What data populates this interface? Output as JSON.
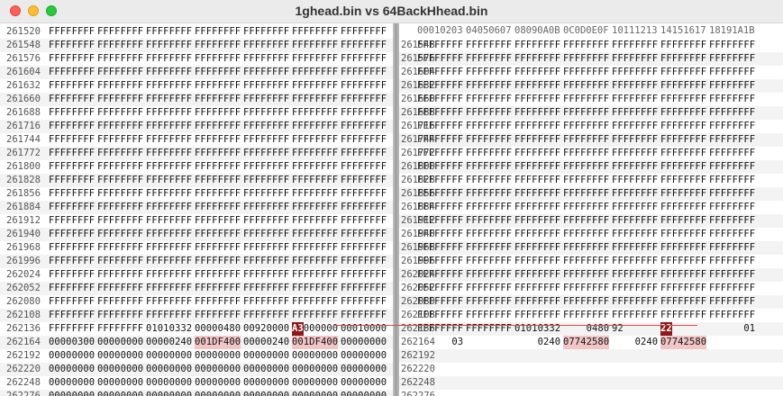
{
  "window": {
    "title": "1ghead.bin vs 64BackHhead.bin"
  },
  "right_header": {
    "columns": [
      "00010203",
      "04050607",
      "08090A0B",
      "0C0D0E0F",
      "10111213",
      "14151617",
      "18191A1B"
    ]
  },
  "left_rows": [
    {
      "offset": "261520",
      "words": [
        "FFFFFFFF",
        "FFFFFFFF",
        "FFFFFFFF",
        "FFFFFFFF",
        "FFFFFFFF",
        "FFFFFFFF",
        "FFFFFFFF"
      ]
    },
    {
      "offset": "261548",
      "words": [
        "FFFFFFFF",
        "FFFFFFFF",
        "FFFFFFFF",
        "FFFFFFFF",
        "FFFFFFFF",
        "FFFFFFFF",
        "FFFFFFFF"
      ]
    },
    {
      "offset": "261576",
      "words": [
        "FFFFFFFF",
        "FFFFFFFF",
        "FFFFFFFF",
        "FFFFFFFF",
        "FFFFFFFF",
        "FFFFFFFF",
        "FFFFFFFF"
      ]
    },
    {
      "offset": "261604",
      "words": [
        "FFFFFFFF",
        "FFFFFFFF",
        "FFFFFFFF",
        "FFFFFFFF",
        "FFFFFFFF",
        "FFFFFFFF",
        "FFFFFFFF"
      ]
    },
    {
      "offset": "261632",
      "words": [
        "FFFFFFFF",
        "FFFFFFFF",
        "FFFFFFFF",
        "FFFFFFFF",
        "FFFFFFFF",
        "FFFFFFFF",
        "FFFFFFFF"
      ]
    },
    {
      "offset": "261660",
      "words": [
        "FFFFFFFF",
        "FFFFFFFF",
        "FFFFFFFF",
        "FFFFFFFF",
        "FFFFFFFF",
        "FFFFFFFF",
        "FFFFFFFF"
      ]
    },
    {
      "offset": "261688",
      "words": [
        "FFFFFFFF",
        "FFFFFFFF",
        "FFFFFFFF",
        "FFFFFFFF",
        "FFFFFFFF",
        "FFFFFFFF",
        "FFFFFFFF"
      ]
    },
    {
      "offset": "261716",
      "words": [
        "FFFFFFFF",
        "FFFFFFFF",
        "FFFFFFFF",
        "FFFFFFFF",
        "FFFFFFFF",
        "FFFFFFFF",
        "FFFFFFFF"
      ]
    },
    {
      "offset": "261744",
      "words": [
        "FFFFFFFF",
        "FFFFFFFF",
        "FFFFFFFF",
        "FFFFFFFF",
        "FFFFFFFF",
        "FFFFFFFF",
        "FFFFFFFF"
      ]
    },
    {
      "offset": "261772",
      "words": [
        "FFFFFFFF",
        "FFFFFFFF",
        "FFFFFFFF",
        "FFFFFFFF",
        "FFFFFFFF",
        "FFFFFFFF",
        "FFFFFFFF"
      ]
    },
    {
      "offset": "261800",
      "words": [
        "FFFFFFFF",
        "FFFFFFFF",
        "FFFFFFFF",
        "FFFFFFFF",
        "FFFFFFFF",
        "FFFFFFFF",
        "FFFFFFFF"
      ]
    },
    {
      "offset": "261828",
      "words": [
        "FFFFFFFF",
        "FFFFFFFF",
        "FFFFFFFF",
        "FFFFFFFF",
        "FFFFFFFF",
        "FFFFFFFF",
        "FFFFFFFF"
      ]
    },
    {
      "offset": "261856",
      "words": [
        "FFFFFFFF",
        "FFFFFFFF",
        "FFFFFFFF",
        "FFFFFFFF",
        "FFFFFFFF",
        "FFFFFFFF",
        "FFFFFFFF"
      ]
    },
    {
      "offset": "261884",
      "words": [
        "FFFFFFFF",
        "FFFFFFFF",
        "FFFFFFFF",
        "FFFFFFFF",
        "FFFFFFFF",
        "FFFFFFFF",
        "FFFFFFFF"
      ]
    },
    {
      "offset": "261912",
      "words": [
        "FFFFFFFF",
        "FFFFFFFF",
        "FFFFFFFF",
        "FFFFFFFF",
        "FFFFFFFF",
        "FFFFFFFF",
        "FFFFFFFF"
      ]
    },
    {
      "offset": "261940",
      "words": [
        "FFFFFFFF",
        "FFFFFFFF",
        "FFFFFFFF",
        "FFFFFFFF",
        "FFFFFFFF",
        "FFFFFFFF",
        "FFFFFFFF"
      ]
    },
    {
      "offset": "261968",
      "words": [
        "FFFFFFFF",
        "FFFFFFFF",
        "FFFFFFFF",
        "FFFFFFFF",
        "FFFFFFFF",
        "FFFFFFFF",
        "FFFFFFFF"
      ]
    },
    {
      "offset": "261996",
      "words": [
        "FFFFFFFF",
        "FFFFFFFF",
        "FFFFFFFF",
        "FFFFFFFF",
        "FFFFFFFF",
        "FFFFFFFF",
        "FFFFFFFF"
      ]
    },
    {
      "offset": "262024",
      "words": [
        "FFFFFFFF",
        "FFFFFFFF",
        "FFFFFFFF",
        "FFFFFFFF",
        "FFFFFFFF",
        "FFFFFFFF",
        "FFFFFFFF"
      ]
    },
    {
      "offset": "262052",
      "words": [
        "FFFFFFFF",
        "FFFFFFFF",
        "FFFFFFFF",
        "FFFFFFFF",
        "FFFFFFFF",
        "FFFFFFFF",
        "FFFFFFFF"
      ]
    },
    {
      "offset": "262080",
      "words": [
        "FFFFFFFF",
        "FFFFFFFF",
        "FFFFFFFF",
        "FFFFFFFF",
        "FFFFFFFF",
        "FFFFFFFF",
        "FFFFFFFF"
      ]
    },
    {
      "offset": "262108",
      "words": [
        "FFFFFFFF",
        "FFFFFFFF",
        "FFFFFFFF",
        "FFFFFFFF",
        "FFFFFFFF",
        "FFFFFFFF",
        "FFFFFFFF"
      ]
    },
    {
      "offset": "262136",
      "words": [
        "FFFFFFFF",
        "FFFFFFFF",
        "01010332",
        "00000480",
        "00920000",
        "A3000000",
        "00010000"
      ],
      "marks": {
        "5": {
          "sel": [
            0,
            1
          ]
        }
      }
    },
    {
      "offset": "262164",
      "words": [
        "00000300",
        "00000000",
        "00000240",
        "001DF400",
        "00000240",
        "001DF400",
        "00000000"
      ],
      "marks": {
        "3": {
          "diff": [
            0,
            7
          ]
        },
        "5": {
          "diff": [
            0,
            7
          ]
        }
      }
    },
    {
      "offset": "262192",
      "words": [
        "00000000",
        "00000000",
        "00000000",
        "00000000",
        "00000000",
        "00000000",
        "00000000"
      ]
    },
    {
      "offset": "262220",
      "words": [
        "00000000",
        "00000000",
        "00000000",
        "00000000",
        "00000000",
        "00000000",
        "00000000"
      ]
    },
    {
      "offset": "262248",
      "words": [
        "00000000",
        "00000000",
        "00000000",
        "00000000",
        "00000000",
        "00000000",
        "00000000"
      ]
    },
    {
      "offset": "262276",
      "words": [
        "00000000",
        "00000000",
        "00000000",
        "00000000",
        "00000000",
        "00000000",
        "00000000"
      ]
    }
  ],
  "right_rows": [
    {
      "offset": "261548",
      "words": [
        "FFFFFFFF",
        "FFFFFFFF",
        "FFFFFFFF",
        "FFFFFFFF",
        "FFFFFFFF",
        "FFFFFFFF",
        "FFFFFFFF"
      ]
    },
    {
      "offset": "261576",
      "words": [
        "FFFFFFFF",
        "FFFFFFFF",
        "FFFFFFFF",
        "FFFFFFFF",
        "FFFFFFFF",
        "FFFFFFFF",
        "FFFFFFFF"
      ]
    },
    {
      "offset": "261604",
      "words": [
        "FFFFFFFF",
        "FFFFFFFF",
        "FFFFFFFF",
        "FFFFFFFF",
        "FFFFFFFF",
        "FFFFFFFF",
        "FFFFFFFF"
      ]
    },
    {
      "offset": "261632",
      "words": [
        "FFFFFFFF",
        "FFFFFFFF",
        "FFFFFFFF",
        "FFFFFFFF",
        "FFFFFFFF",
        "FFFFFFFF",
        "FFFFFFFF"
      ]
    },
    {
      "offset": "261660",
      "words": [
        "FFFFFFFF",
        "FFFFFFFF",
        "FFFFFFFF",
        "FFFFFFFF",
        "FFFFFFFF",
        "FFFFFFFF",
        "FFFFFFFF"
      ]
    },
    {
      "offset": "261688",
      "words": [
        "FFFFFFFF",
        "FFFFFFFF",
        "FFFFFFFF",
        "FFFFFFFF",
        "FFFFFFFF",
        "FFFFFFFF",
        "FFFFFFFF"
      ]
    },
    {
      "offset": "261716",
      "words": [
        "FFFFFFFF",
        "FFFFFFFF",
        "FFFFFFFF",
        "FFFFFFFF",
        "FFFFFFFF",
        "FFFFFFFF",
        "FFFFFFFF"
      ]
    },
    {
      "offset": "261744",
      "words": [
        "FFFFFFFF",
        "FFFFFFFF",
        "FFFFFFFF",
        "FFFFFFFF",
        "FFFFFFFF",
        "FFFFFFFF",
        "FFFFFFFF"
      ]
    },
    {
      "offset": "261772",
      "words": [
        "FFFFFFFF",
        "FFFFFFFF",
        "FFFFFFFF",
        "FFFFFFFF",
        "FFFFFFFF",
        "FFFFFFFF",
        "FFFFFFFF"
      ]
    },
    {
      "offset": "261800",
      "words": [
        "FFFFFFFF",
        "FFFFFFFF",
        "FFFFFFFF",
        "FFFFFFFF",
        "FFFFFFFF",
        "FFFFFFFF",
        "FFFFFFFF"
      ]
    },
    {
      "offset": "261828",
      "words": [
        "FFFFFFFF",
        "FFFFFFFF",
        "FFFFFFFF",
        "FFFFFFFF",
        "FFFFFFFF",
        "FFFFFFFF",
        "FFFFFFFF"
      ]
    },
    {
      "offset": "261856",
      "words": [
        "FFFFFFFF",
        "FFFFFFFF",
        "FFFFFFFF",
        "FFFFFFFF",
        "FFFFFFFF",
        "FFFFFFFF",
        "FFFFFFFF"
      ]
    },
    {
      "offset": "261884",
      "words": [
        "FFFFFFFF",
        "FFFFFFFF",
        "FFFFFFFF",
        "FFFFFFFF",
        "FFFFFFFF",
        "FFFFFFFF",
        "FFFFFFFF"
      ]
    },
    {
      "offset": "261912",
      "words": [
        "FFFFFFFF",
        "FFFFFFFF",
        "FFFFFFFF",
        "FFFFFFFF",
        "FFFFFFFF",
        "FFFFFFFF",
        "FFFFFFFF"
      ]
    },
    {
      "offset": "261940",
      "words": [
        "FFFFFFFF",
        "FFFFFFFF",
        "FFFFFFFF",
        "FFFFFFFF",
        "FFFFFFFF",
        "FFFFFFFF",
        "FFFFFFFF"
      ]
    },
    {
      "offset": "261968",
      "words": [
        "FFFFFFFF",
        "FFFFFFFF",
        "FFFFFFFF",
        "FFFFFFFF",
        "FFFFFFFF",
        "FFFFFFFF",
        "FFFFFFFF"
      ]
    },
    {
      "offset": "261996",
      "words": [
        "FFFFFFFF",
        "FFFFFFFF",
        "FFFFFFFF",
        "FFFFFFFF",
        "FFFFFFFF",
        "FFFFFFFF",
        "FFFFFFFF"
      ]
    },
    {
      "offset": "262024",
      "words": [
        "FFFFFFFF",
        "FFFFFFFF",
        "FFFFFFFF",
        "FFFFFFFF",
        "FFFFFFFF",
        "FFFFFFFF",
        "FFFFFFFF"
      ]
    },
    {
      "offset": "262052",
      "words": [
        "FFFFFFFF",
        "FFFFFFFF",
        "FFFFFFFF",
        "FFFFFFFF",
        "FFFFFFFF",
        "FFFFFFFF",
        "FFFFFFFF"
      ]
    },
    {
      "offset": "262080",
      "words": [
        "FFFFFFFF",
        "FFFFFFFF",
        "FFFFFFFF",
        "FFFFFFFF",
        "FFFFFFFF",
        "FFFFFFFF",
        "FFFFFFFF"
      ]
    },
    {
      "offset": "262108",
      "words": [
        "FFFFFFFF",
        "FFFFFFFF",
        "FFFFFFFF",
        "FFFFFFFF",
        "FFFFFFFF",
        "FFFFFFFF",
        "FFFFFFFF"
      ]
    },
    {
      "offset": "262136",
      "words": [
        "FFFFFFFF",
        "FFFFFFFF",
        "01010332",
        "    0480",
        "92      ",
        "22      ",
        "      01"
      ],
      "marks": {
        "5": {
          "sel": [
            0,
            1
          ]
        }
      }
    },
    {
      "offset": "262164",
      "words": [
        "      03",
        "        ",
        "    0240",
        "07742580",
        "    0240",
        "07742580",
        "        "
      ],
      "marks": {
        "3": {
          "diff": [
            0,
            7
          ]
        },
        "5": {
          "diff": [
            0,
            7
          ]
        }
      }
    },
    {
      "offset": "262192",
      "words": []
    },
    {
      "offset": "262220",
      "words": []
    },
    {
      "offset": "262248",
      "words": []
    },
    {
      "offset": "262276",
      "words": []
    }
  ]
}
